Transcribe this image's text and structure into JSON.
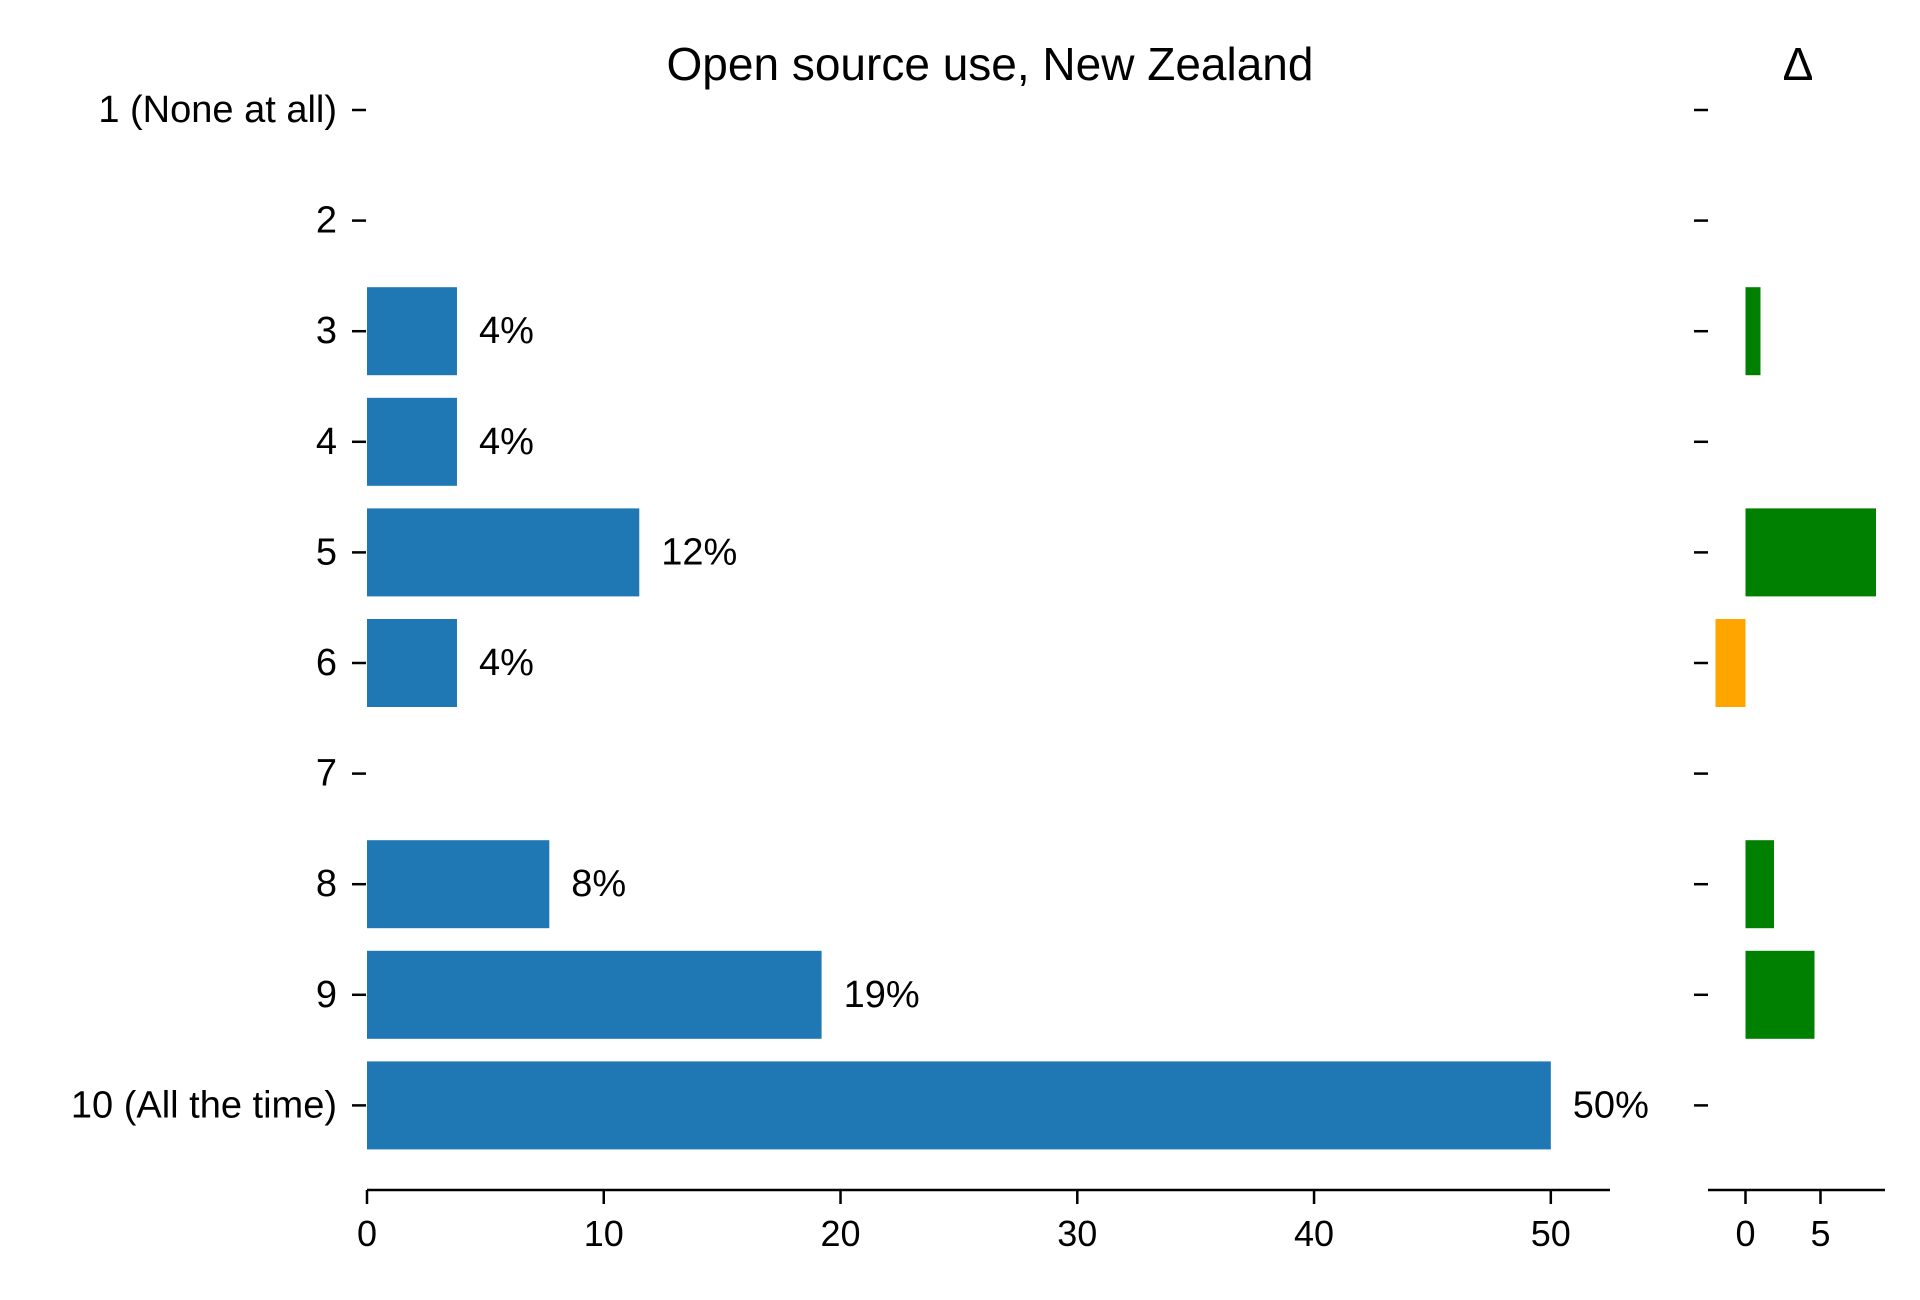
{
  "chart_data": [
    {
      "type": "bar",
      "orientation": "horizontal",
      "title": "Open source use, New Zealand",
      "categories": [
        "1 (None at all)",
        "2",
        "3",
        "4",
        "5",
        "6",
        "7",
        "8",
        "9",
        "10 (All the time)"
      ],
      "values": [
        0,
        0,
        3.8,
        3.8,
        11.5,
        3.8,
        0,
        7.7,
        19.2,
        50.0
      ],
      "data_labels": [
        "",
        "",
        "4%",
        "4%",
        "12%",
        "4%",
        "",
        "8%",
        "19%",
        "50%"
      ],
      "xticks": [
        "0",
        "10",
        "20",
        "30",
        "40",
        "50"
      ],
      "xlim": [
        0,
        52.5
      ],
      "color": "#1f77b4",
      "grid": false
    },
    {
      "type": "bar",
      "orientation": "horizontal",
      "title": "Δ",
      "categories": [
        "1 (None at all)",
        "2",
        "3",
        "4",
        "5",
        "6",
        "7",
        "8",
        "9",
        "10 (All the time)"
      ],
      "values": [
        0,
        0,
        1.0,
        0,
        8.7,
        -2.0,
        0,
        1.9,
        4.6,
        0
      ],
      "xticks": [
        "0",
        "5"
      ],
      "xlim": [
        -2.5,
        9.3
      ],
      "positive_color": "#008000",
      "negative_color": "#ffa500",
      "grid": false
    }
  ]
}
